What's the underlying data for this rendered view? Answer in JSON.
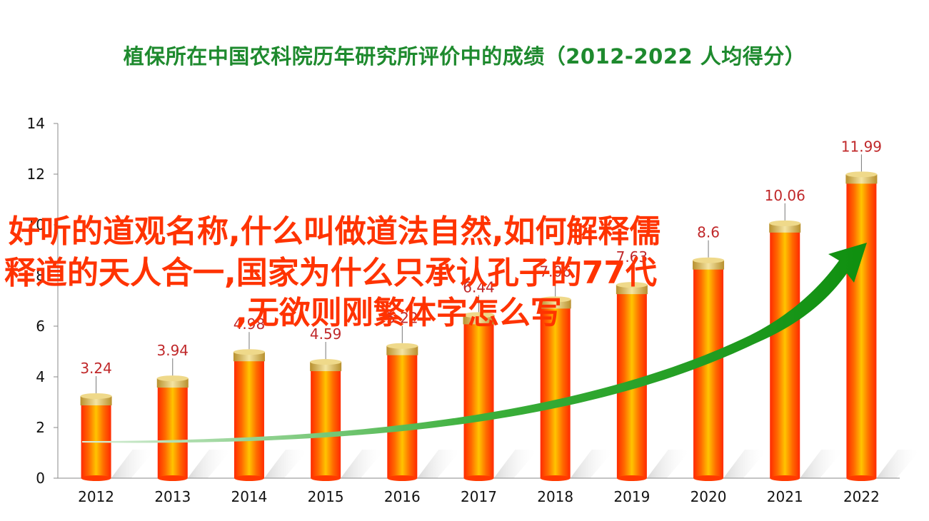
{
  "title": "植保所在中国农科院历年研究所评价中的成绩（2012-2022  人均得分）",
  "overlay_text": {
    "line1": "好听的道观名称,什么叫做道法自然,如何解释儒",
    "line2": "释道的天人合一,国家为什么只承认孔子的77代",
    "line3": ",无欲则刚繁体字怎么写"
  },
  "colors": {
    "title": "#1e8a2e",
    "bar_red": "#ff3300",
    "bar_orange": "#ffc000",
    "cap_gold": "#d4b04a",
    "label_red": "#c0282a",
    "arrow_green": "#1a9a1a",
    "overlay_red": "#ff3300"
  },
  "chart_data": {
    "type": "bar",
    "categories": [
      "2012",
      "2013",
      "2014",
      "2015",
      "2016",
      "2017",
      "2018",
      "2019",
      "2020",
      "2021",
      "2022"
    ],
    "values": [
      3.24,
      3.94,
      4.98,
      4.59,
      5.22,
      6.44,
      7.06,
      7.63,
      8.6,
      10.06,
      11.99
    ],
    "data_labels": [
      "3.24",
      "3.94",
      "4.98",
      "4.59",
      "5.22",
      "6.44",
      "7.06",
      "7.63",
      "8.6",
      "10.06",
      "11.99"
    ],
    "yticks": [
      "0",
      "2",
      "4",
      "6",
      "8",
      "10",
      "12",
      "14"
    ],
    "ylim": [
      0,
      14
    ],
    "xlabel": "",
    "ylabel": "",
    "grid": false,
    "trend_arrow": true
  }
}
